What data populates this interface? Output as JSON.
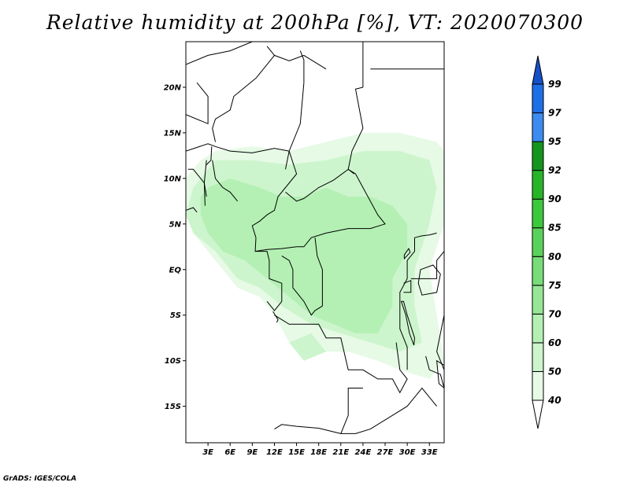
{
  "title": "Relative humidity at 200hPa [%], VT: 2020070300",
  "credit": "GrADS: IGES/COLA",
  "map": {
    "lon_range": [
      0,
      35
    ],
    "lat_range": [
      -19,
      25
    ],
    "lat_ticks": [
      {
        "value": 20,
        "label": "20N"
      },
      {
        "value": 15,
        "label": "15N"
      },
      {
        "value": 10,
        "label": "10N"
      },
      {
        "value": 5,
        "label": "5N"
      },
      {
        "value": 0,
        "label": "EQ"
      },
      {
        "value": -5,
        "label": "5S"
      },
      {
        "value": -10,
        "label": "10S"
      },
      {
        "value": -15,
        "label": "15S"
      }
    ],
    "lon_ticks": [
      {
        "value": 3,
        "label": "3E"
      },
      {
        "value": 6,
        "label": "6E"
      },
      {
        "value": 9,
        "label": "9E"
      },
      {
        "value": 12,
        "label": "12E"
      },
      {
        "value": 15,
        "label": "15E"
      },
      {
        "value": 18,
        "label": "18E"
      },
      {
        "value": 21,
        "label": "21E"
      },
      {
        "value": 24,
        "label": "24E"
      },
      {
        "value": 27,
        "label": "27E"
      },
      {
        "value": 30,
        "label": "30E"
      },
      {
        "value": 33,
        "label": "33E"
      }
    ]
  },
  "colorbar": {
    "levels": [
      "40",
      "50",
      "60",
      "70",
      "75",
      "80",
      "85",
      "90",
      "92",
      "95",
      "97",
      "99"
    ],
    "colors": [
      "#ffffff",
      "#e6fae6",
      "#cdf5cd",
      "#b4f0b4",
      "#96e696",
      "#78dc78",
      "#5ad25a",
      "#3cc83c",
      "#28b428",
      "#14961e",
      "#3c8cf0",
      "#1e6ee6",
      "#1450c8"
    ]
  },
  "humidity_patches": [
    {
      "level": 1,
      "points": [
        [
          4,
          13
        ],
        [
          9,
          13.5
        ],
        [
          14,
          13
        ],
        [
          19,
          14
        ],
        [
          24,
          15
        ],
        [
          29,
          15
        ],
        [
          34,
          14
        ],
        [
          35,
          13
        ],
        [
          35,
          5
        ],
        [
          33,
          0
        ],
        [
          34,
          -5
        ],
        [
          35,
          -10
        ],
        [
          33,
          -12
        ],
        [
          29,
          -11
        ],
        [
          26,
          -10
        ],
        [
          22,
          -9
        ],
        [
          19,
          -9
        ],
        [
          16,
          -10
        ],
        [
          14,
          -8
        ],
        [
          12,
          -5
        ],
        [
          10,
          -3
        ],
        [
          7,
          -2
        ],
        [
          4,
          1
        ],
        [
          1,
          4
        ],
        [
          0,
          6
        ],
        [
          0,
          10
        ],
        [
          2,
          12
        ]
      ]
    },
    {
      "level": 2,
      "points": [
        [
          4,
          12
        ],
        [
          9,
          12
        ],
        [
          14,
          11.5
        ],
        [
          19,
          12
        ],
        [
          24,
          13
        ],
        [
          29,
          13
        ],
        [
          33,
          12
        ],
        [
          34,
          9
        ],
        [
          33,
          5
        ],
        [
          31,
          0
        ],
        [
          31,
          -4
        ],
        [
          32,
          -8
        ],
        [
          29,
          -9
        ],
        [
          25,
          -8
        ],
        [
          21,
          -7
        ],
        [
          17,
          -6
        ],
        [
          13,
          -4
        ],
        [
          10,
          -2
        ],
        [
          7,
          -1
        ],
        [
          4,
          2
        ],
        [
          1,
          4
        ],
        [
          0,
          6
        ],
        [
          1,
          9
        ]
      ]
    },
    {
      "level": 2,
      "points": [
        [
          14,
          -8
        ],
        [
          17,
          -7
        ],
        [
          19,
          -9
        ],
        [
          16,
          -10
        ]
      ]
    },
    {
      "level": 3,
      "points": [
        [
          3,
          9
        ],
        [
          6,
          10
        ],
        [
          10,
          9
        ],
        [
          13,
          8
        ],
        [
          16,
          8
        ],
        [
          19,
          9
        ],
        [
          22,
          8
        ],
        [
          25,
          8
        ],
        [
          28,
          7
        ],
        [
          30,
          5
        ],
        [
          30,
          2
        ],
        [
          28,
          -1
        ],
        [
          28,
          -4
        ],
        [
          26,
          -7
        ],
        [
          23,
          -7
        ],
        [
          20,
          -6
        ],
        [
          17,
          -5
        ],
        [
          14,
          -3
        ],
        [
          11,
          -1
        ],
        [
          8,
          1
        ],
        [
          5,
          2
        ],
        [
          3,
          4
        ],
        [
          2,
          6
        ],
        [
          2,
          8
        ]
      ]
    }
  ],
  "borders": [
    [
      [
        0,
        22.5
      ],
      [
        3,
        23.5
      ],
      [
        6,
        24
      ],
      [
        9,
        25
      ]
    ],
    [
      [
        11,
        24.5
      ],
      [
        12,
        23.5
      ],
      [
        14,
        22.9
      ],
      [
        16,
        23.5
      ],
      [
        19,
        22
      ]
    ],
    [
      [
        0,
        17
      ],
      [
        3,
        16
      ],
      [
        3,
        19
      ],
      [
        1.5,
        20.5
      ]
    ],
    [
      [
        9.5,
        21
      ],
      [
        12,
        23.5
      ]
    ],
    [
      [
        9.5,
        21
      ],
      [
        6.5,
        19
      ],
      [
        6,
        17.5
      ],
      [
        4,
        16.5
      ],
      [
        3.6,
        15.5
      ],
      [
        4,
        14
      ]
    ],
    [
      [
        16,
        20.5
      ],
      [
        16,
        23
      ],
      [
        15.5,
        24
      ]
    ],
    [
      [
        16,
        20.5
      ],
      [
        15.5,
        16
      ],
      [
        14,
        13
      ],
      [
        13.5,
        11
      ]
    ],
    [
      [
        24,
        20
      ],
      [
        24,
        25
      ]
    ],
    [
      [
        24,
        20
      ],
      [
        23,
        19.8
      ],
      [
        24,
        15.5
      ],
      [
        22.5,
        13
      ],
      [
        22,
        11
      ],
      [
        22.8,
        10.5
      ]
    ],
    [
      [
        25,
        22
      ],
      [
        35,
        22
      ]
    ],
    [
      [
        0,
        13
      ],
      [
        3,
        13.8
      ],
      [
        4,
        13.5
      ],
      [
        6,
        13
      ],
      [
        9,
        12.8
      ],
      [
        12,
        13.3
      ],
      [
        14,
        13
      ]
    ],
    [
      [
        2.8,
        12
      ],
      [
        2.5,
        9.5
      ],
      [
        2.6,
        7
      ]
    ],
    [
      [
        3.5,
        13.5
      ],
      [
        3.4,
        12
      ],
      [
        2.8,
        11.5
      ]
    ],
    [
      [
        0.3,
        11
      ],
      [
        1,
        11
      ],
      [
        1.5,
        10.5
      ],
      [
        2.5,
        9.5
      ],
      [
        2.8,
        8
      ]
    ],
    [
      [
        0,
        6.5
      ],
      [
        1,
        6.8
      ],
      [
        1.5,
        6.3
      ]
    ],
    [
      [
        3.6,
        12
      ],
      [
        4,
        10
      ],
      [
        5,
        9
      ],
      [
        6,
        8.5
      ],
      [
        7,
        7.5
      ]
    ],
    [
      [
        14,
        13
      ],
      [
        15,
        10.5
      ],
      [
        13.5,
        9
      ],
      [
        12.5,
        8
      ],
      [
        12,
        6.5
      ],
      [
        11,
        6
      ],
      [
        10,
        5.3
      ],
      [
        9,
        4.8
      ],
      [
        9.5,
        3.5
      ]
    ],
    [
      [
        13.5,
        8.5
      ],
      [
        15,
        7.5
      ],
      [
        16,
        7.8
      ],
      [
        18,
        9
      ],
      [
        20,
        9.8
      ],
      [
        22,
        11
      ],
      [
        23,
        10.5
      ],
      [
        24,
        9
      ],
      [
        26,
        6
      ],
      [
        27,
        5
      ],
      [
        25,
        4.5
      ],
      [
        22,
        4.5
      ],
      [
        19,
        4
      ],
      [
        17,
        3.5
      ],
      [
        16,
        2.5
      ],
      [
        15,
        2.5
      ]
    ],
    [
      [
        9.5,
        3.5
      ],
      [
        9.4,
        2
      ],
      [
        11,
        2.2
      ],
      [
        13,
        2.3
      ],
      [
        15,
        2.5
      ]
    ],
    [
      [
        9.4,
        2
      ],
      [
        11,
        2
      ],
      [
        11.3,
        1
      ],
      [
        11.3,
        -1
      ],
      [
        13,
        -1.5
      ],
      [
        13,
        -3.5
      ],
      [
        12,
        -4.5
      ],
      [
        11,
        -3.5
      ]
    ],
    [
      [
        13,
        1.5
      ],
      [
        14,
        1
      ],
      [
        14.5,
        0
      ],
      [
        14.5,
        -2
      ],
      [
        16,
        -3.5
      ],
      [
        17,
        -5
      ],
      [
        17.5,
        -4.5
      ],
      [
        18.5,
        -4
      ],
      [
        18.5,
        -2
      ],
      [
        18.5,
        0
      ],
      [
        17.8,
        1.5
      ],
      [
        17.5,
        3.5
      ]
    ],
    [
      [
        12,
        -5
      ],
      [
        14,
        -6
      ],
      [
        16,
        -6
      ],
      [
        18,
        -6
      ],
      [
        19,
        -7.5
      ],
      [
        21,
        -7.5
      ],
      [
        22,
        -11
      ],
      [
        24,
        -11
      ],
      [
        25,
        -11.5
      ],
      [
        26,
        -12
      ],
      [
        28,
        -12
      ],
      [
        29,
        -13.5
      ],
      [
        30,
        -12
      ],
      [
        29,
        -11
      ],
      [
        28.5,
        -8
      ]
    ],
    [
      [
        11.8,
        -4.6
      ],
      [
        12.5,
        -5.5
      ],
      [
        12.3,
        -5.8
      ]
    ],
    [
      [
        12,
        -17.5
      ],
      [
        13,
        -17
      ],
      [
        15,
        -17.2
      ],
      [
        18,
        -17.4
      ],
      [
        21,
        -18
      ],
      [
        22,
        -16
      ],
      [
        22,
        -13
      ],
      [
        24,
        -13
      ]
    ],
    [
      [
        23,
        -18
      ],
      [
        25,
        -17.5
      ],
      [
        28,
        -16
      ],
      [
        30,
        -15
      ],
      [
        32,
        -13
      ],
      [
        34,
        -15
      ]
    ],
    [
      [
        21,
        -18
      ],
      [
        23,
        -18
      ]
    ],
    [
      [
        30,
        -11
      ],
      [
        30,
        -8.5
      ],
      [
        29,
        -6.5
      ],
      [
        29,
        -4.5
      ],
      [
        29,
        -2.5
      ],
      [
        30,
        -1
      ],
      [
        30,
        1
      ],
      [
        31,
        2
      ],
      [
        31,
        3.5
      ]
    ],
    [
      [
        29.5,
        -1.5
      ],
      [
        30.5,
        -1.2
      ],
      [
        30.5,
        -2.5
      ],
      [
        29.5,
        -2.5
      ]
    ],
    [
      [
        30.5,
        -1
      ],
      [
        34,
        -1
      ],
      [
        34,
        1
      ],
      [
        35,
        2
      ]
    ],
    [
      [
        31,
        3.5
      ],
      [
        32,
        3.7
      ],
      [
        33,
        3.8
      ],
      [
        34,
        4
      ]
    ],
    [
      [
        35,
        -1.2
      ],
      [
        35,
        -5
      ],
      [
        34,
        -9
      ],
      [
        35,
        -11
      ]
    ],
    [
      [
        32.5,
        -9.5
      ],
      [
        33,
        -11
      ],
      [
        34.5,
        -11.5
      ],
      [
        35,
        -13
      ]
    ]
  ],
  "lakes": [
    [
      [
        29.2,
        -3.5
      ],
      [
        29.8,
        -5
      ],
      [
        30.3,
        -7
      ],
      [
        30.9,
        -8.3
      ],
      [
        31,
        -7.5
      ],
      [
        30,
        -5
      ],
      [
        29.5,
        -3.5
      ]
    ],
    [
      [
        31.8,
        0
      ],
      [
        33.5,
        0.5
      ],
      [
        34.5,
        -0.5
      ],
      [
        34,
        -2.5
      ],
      [
        32,
        -2.8
      ],
      [
        31.5,
        -1.5
      ]
    ],
    [
      [
        29.6,
        1.2
      ],
      [
        30.4,
        1.9
      ],
      [
        30.2,
        2.3
      ],
      [
        29.6,
        1.6
      ]
    ],
    [
      [
        34,
        -10
      ],
      [
        35,
        -10.5
      ],
      [
        35,
        -13
      ],
      [
        34.3,
        -12.5
      ]
    ]
  ]
}
